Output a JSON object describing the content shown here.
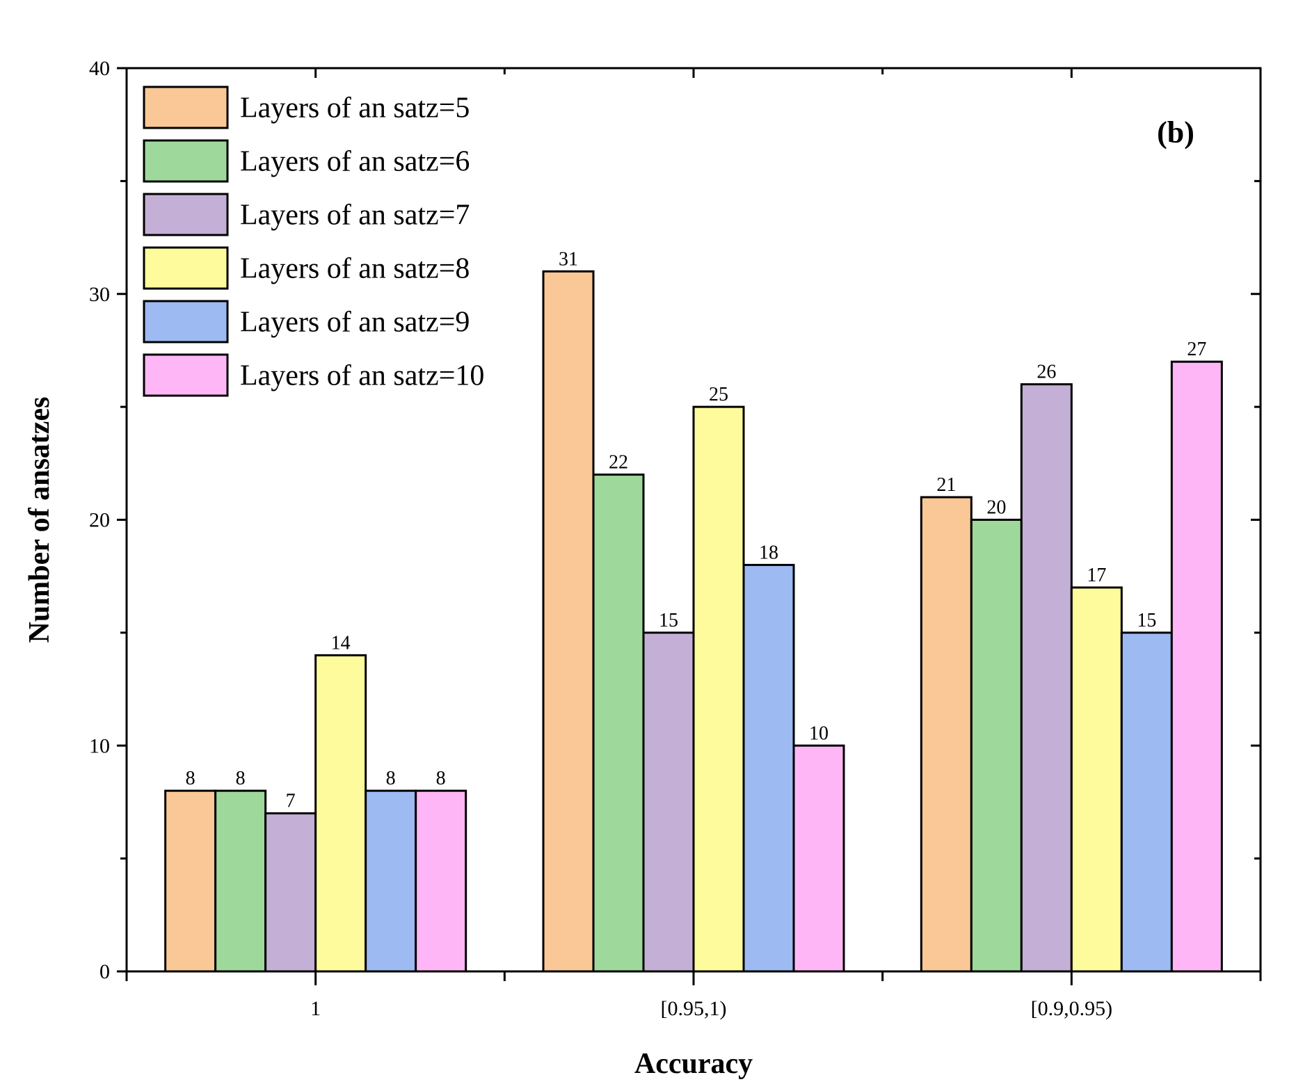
{
  "chart_data": {
    "type": "bar",
    "panel_label": "(b)",
    "xlabel": "Accuracy",
    "ylabel": "Number of ansatzes",
    "categories": [
      "1",
      "[0.95,1)",
      "[0.9,0.95)"
    ],
    "ylim": [
      0,
      40
    ],
    "yticks": [
      0,
      10,
      20,
      30,
      40
    ],
    "legend_position": "top-left",
    "series": [
      {
        "name": "Layers of an satz=5",
        "color": "#F9C896",
        "values": [
          8,
          31,
          21
        ]
      },
      {
        "name": "Layers of an satz=6",
        "color": "#9ED99B",
        "values": [
          8,
          22,
          20
        ]
      },
      {
        "name": "Layers of an satz=7",
        "color": "#C4B0D6",
        "values": [
          7,
          15,
          26
        ]
      },
      {
        "name": "Layers of an satz=8",
        "color": "#FEFB9C",
        "values": [
          14,
          25,
          17
        ]
      },
      {
        "name": "Layers of an satz=9",
        "color": "#9DBAF2",
        "values": [
          8,
          18,
          15
        ]
      },
      {
        "name": "Layers of an satz=10",
        "color": "#FEB6F6",
        "values": [
          8,
          10,
          27
        ]
      }
    ]
  }
}
